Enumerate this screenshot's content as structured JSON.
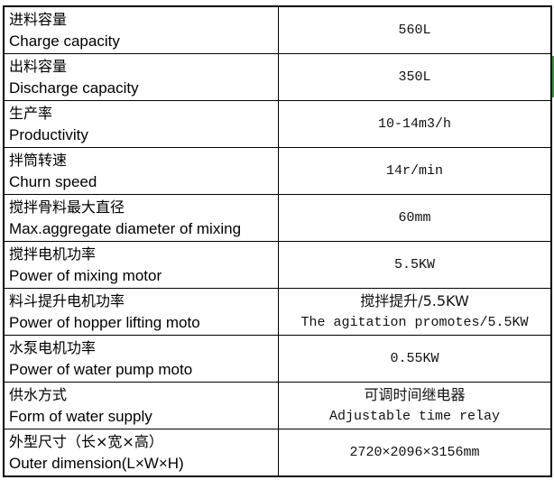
{
  "rows": [
    {
      "label_cn": "进料容量",
      "label_en": "Charge capacity",
      "value": "560L"
    },
    {
      "label_cn": "出料容量",
      "label_en": "Discharge capacity",
      "value": "350L"
    },
    {
      "label_cn": "生产率",
      "label_en": "Productivity",
      "value": "10-14m3/h"
    },
    {
      "label_cn": "拌筒转速",
      "label_en": "Churn speed",
      "value": "14r/min"
    },
    {
      "label_cn": "搅拌骨料最大直径",
      "label_en": "Max.aggregate diameter of mixing",
      "value": "60mm"
    },
    {
      "label_cn": "搅拌电机功率",
      "label_en": "Power of mixing motor",
      "value": "5.5KW"
    },
    {
      "label_cn": "料斗提升电机功率",
      "label_en": "Power of hopper lifting moto",
      "value_cn": "搅拌提升/5.5KW",
      "value": "The agitation promotes/5.5KW"
    },
    {
      "label_cn": "水泵电机功率",
      "label_en": "Power of water pump moto",
      "value": "0.55KW"
    },
    {
      "label_cn": "供水方式",
      "label_en": "Form of water supply",
      "value_cn": "可调时间继电器",
      "value": "Adjustable time relay"
    },
    {
      "label_cn": "外型尺寸（长×宽×高）",
      "label_en": "Outer dimension(L×W×H)",
      "value": "2720×2096×3156mm"
    }
  ]
}
